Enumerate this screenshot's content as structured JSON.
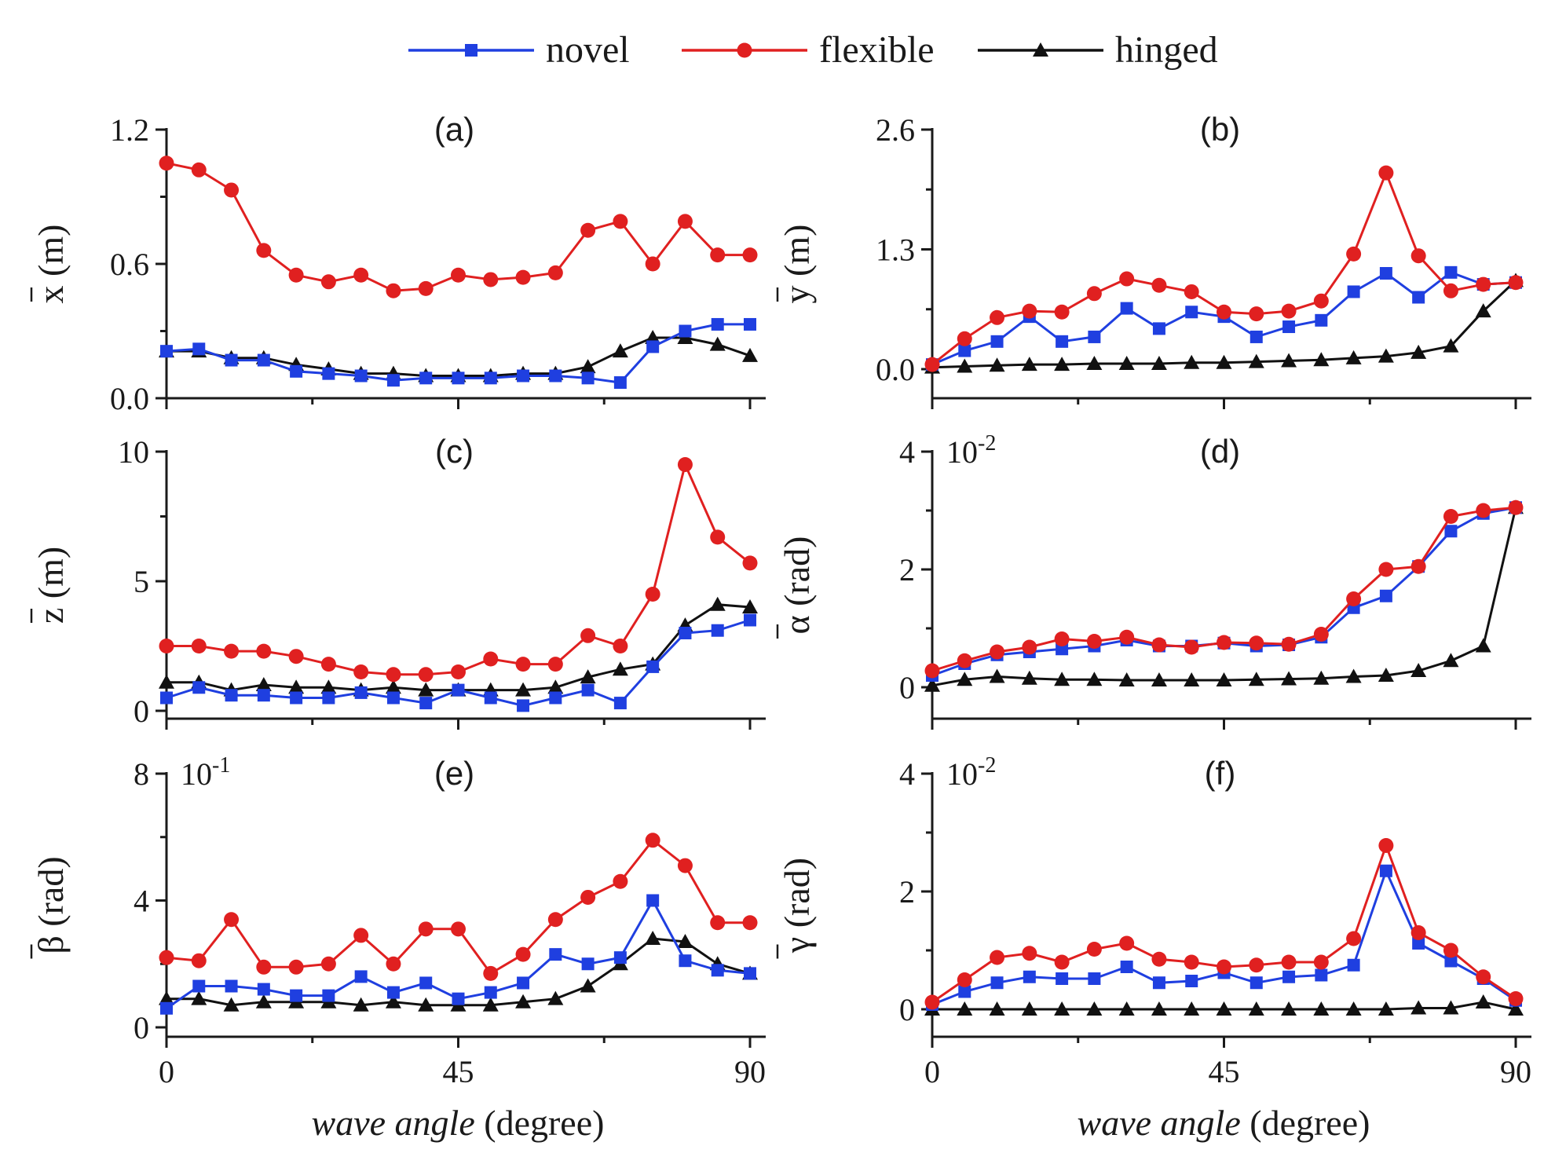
{
  "legend": [
    {
      "name": "novel",
      "color": "#1f3fe0",
      "marker": "square"
    },
    {
      "name": "flexible",
      "color": "#e02020",
      "marker": "circle"
    },
    {
      "name": "hinged",
      "color": "#111111",
      "marker": "triangle"
    }
  ],
  "x_axis_label": {
    "italic": "wave angle",
    "rest": " (degree)"
  },
  "chart_data": [
    {
      "type": "line",
      "panel": "(a)",
      "ylabel": "x (m)",
      "overbar": "x",
      "ylim": [
        0,
        1.2
      ],
      "yticks": [
        "0.0",
        "0.6",
        "1.2"
      ],
      "scale_note": "",
      "xlim": [
        0,
        90
      ],
      "xticks": [
        "0",
        "45",
        "90"
      ],
      "x": [
        0,
        5,
        10,
        15,
        20,
        25,
        30,
        35,
        40,
        45,
        50,
        55,
        60,
        65,
        70,
        75,
        80,
        85,
        90
      ],
      "series": [
        {
          "name": "novel",
          "values": [
            0.21,
            0.22,
            0.17,
            0.17,
            0.12,
            0.11,
            0.1,
            0.08,
            0.09,
            0.09,
            0.09,
            0.1,
            0.1,
            0.09,
            0.07,
            0.23,
            0.3,
            0.33,
            0.33
          ]
        },
        {
          "name": "flexible",
          "values": [
            1.05,
            1.02,
            0.93,
            0.66,
            0.55,
            0.52,
            0.55,
            0.48,
            0.49,
            0.55,
            0.53,
            0.54,
            0.56,
            0.75,
            0.79,
            0.6,
            0.79,
            0.64,
            0.64
          ]
        },
        {
          "name": "hinged",
          "values": [
            0.21,
            0.21,
            0.18,
            0.18,
            0.15,
            0.13,
            0.11,
            0.11,
            0.1,
            0.1,
            0.1,
            0.11,
            0.11,
            0.14,
            0.21,
            0.27,
            0.27,
            0.24,
            0.19
          ]
        }
      ]
    },
    {
      "type": "line",
      "panel": "(b)",
      "ylabel": "y (m)",
      "overbar": "y",
      "ylim": [
        0,
        2.6
      ],
      "yticks": [
        "0.0",
        "1.3",
        "2.6"
      ],
      "scale_note": "",
      "xlim": [
        0,
        90
      ],
      "xticks": [
        "0",
        "45",
        "90"
      ],
      "x": [
        0,
        5,
        10,
        15,
        20,
        25,
        30,
        35,
        40,
        45,
        50,
        55,
        60,
        65,
        70,
        75,
        80,
        85,
        90
      ],
      "series": [
        {
          "name": "novel",
          "values": [
            0.05,
            0.2,
            0.3,
            0.57,
            0.3,
            0.35,
            0.66,
            0.44,
            0.62,
            0.57,
            0.35,
            0.46,
            0.53,
            0.84,
            1.04,
            0.78,
            1.05,
            0.92,
            0.94
          ]
        },
        {
          "name": "flexible",
          "values": [
            0.05,
            0.33,
            0.56,
            0.63,
            0.62,
            0.82,
            0.98,
            0.91,
            0.84,
            0.62,
            0.6,
            0.63,
            0.74,
            1.25,
            2.13,
            1.23,
            0.85,
            0.92,
            0.94
          ]
        },
        {
          "name": "hinged",
          "values": [
            0.02,
            0.03,
            0.04,
            0.05,
            0.05,
            0.06,
            0.06,
            0.06,
            0.07,
            0.07,
            0.08,
            0.09,
            0.1,
            0.12,
            0.14,
            0.18,
            0.25,
            0.63,
            0.96
          ]
        }
      ]
    },
    {
      "type": "line",
      "panel": "(c)",
      "ylabel": "z (m)",
      "overbar": "z",
      "ylim": [
        0,
        10
      ],
      "yticks": [
        "0",
        "5",
        "10"
      ],
      "scale_note": "",
      "xlim": [
        0,
        90
      ],
      "xticks": [
        "0",
        "45",
        "90"
      ],
      "x": [
        0,
        5,
        10,
        15,
        20,
        25,
        30,
        35,
        40,
        45,
        50,
        55,
        60,
        65,
        70,
        75,
        80,
        85,
        90
      ],
      "series": [
        {
          "name": "novel",
          "values": [
            0.5,
            0.9,
            0.6,
            0.6,
            0.5,
            0.5,
            0.7,
            0.5,
            0.3,
            0.8,
            0.5,
            0.2,
            0.5,
            0.8,
            0.3,
            1.7,
            3.0,
            3.1,
            3.5
          ]
        },
        {
          "name": "flexible",
          "values": [
            2.5,
            2.5,
            2.3,
            2.3,
            2.1,
            1.8,
            1.5,
            1.4,
            1.4,
            1.5,
            2.0,
            1.8,
            1.8,
            2.9,
            2.5,
            4.5,
            9.5,
            6.7,
            5.7
          ]
        },
        {
          "name": "hinged",
          "values": [
            1.1,
            1.1,
            0.8,
            1.0,
            0.9,
            0.9,
            0.8,
            0.9,
            0.8,
            0.8,
            0.8,
            0.8,
            0.9,
            1.3,
            1.6,
            1.8,
            3.3,
            4.1,
            4.0
          ]
        }
      ]
    },
    {
      "type": "line",
      "panel": "(d)",
      "ylabel": "α (rad)",
      "overbar": "α",
      "ylim": [
        0,
        4
      ],
      "yticks": [
        "0",
        "2",
        "4"
      ],
      "scale_note": "10-2",
      "xlim": [
        0,
        90
      ],
      "xticks": [
        "0",
        "45",
        "90"
      ],
      "x": [
        0,
        5,
        10,
        15,
        20,
        25,
        30,
        35,
        40,
        45,
        50,
        55,
        60,
        65,
        70,
        75,
        80,
        85,
        90
      ],
      "series": [
        {
          "name": "novel",
          "values": [
            0.2,
            0.4,
            0.55,
            0.6,
            0.65,
            0.7,
            0.8,
            0.7,
            0.7,
            0.75,
            0.7,
            0.72,
            0.85,
            1.35,
            1.55,
            2.05,
            2.65,
            2.95,
            3.05
          ]
        },
        {
          "name": "flexible",
          "values": [
            0.28,
            0.45,
            0.6,
            0.68,
            0.82,
            0.78,
            0.85,
            0.72,
            0.68,
            0.76,
            0.75,
            0.73,
            0.9,
            1.5,
            2.0,
            2.05,
            2.9,
            3.0,
            3.05
          ]
        },
        {
          "name": "hinged",
          "values": [
            0.03,
            0.13,
            0.18,
            0.15,
            0.13,
            0.13,
            0.12,
            0.12,
            0.12,
            0.12,
            0.13,
            0.14,
            0.15,
            0.18,
            0.2,
            0.28,
            0.45,
            0.7,
            3.05
          ]
        }
      ]
    },
    {
      "type": "line",
      "panel": "(e)",
      "ylabel": "β (rad)",
      "overbar": "β",
      "ylim": [
        0,
        8
      ],
      "yticks": [
        "0",
        "4",
        "8"
      ],
      "scale_note": "10-1",
      "xlim": [
        0,
        90
      ],
      "xticks": [
        "0",
        "45",
        "90"
      ],
      "x": [
        0,
        5,
        10,
        15,
        20,
        25,
        30,
        35,
        40,
        45,
        50,
        55,
        60,
        65,
        70,
        75,
        80,
        85,
        90
      ],
      "series": [
        {
          "name": "novel",
          "values": [
            0.6,
            1.3,
            1.3,
            1.2,
            1.0,
            1.0,
            1.6,
            1.1,
            1.4,
            0.9,
            1.1,
            1.4,
            2.3,
            2.0,
            2.2,
            4.0,
            2.1,
            1.8,
            1.7
          ]
        },
        {
          "name": "flexible",
          "values": [
            2.2,
            2.1,
            3.4,
            1.9,
            1.9,
            2.0,
            2.9,
            2.0,
            3.1,
            3.1,
            1.7,
            2.3,
            3.4,
            4.1,
            4.6,
            5.9,
            5.1,
            3.3,
            3.3
          ]
        },
        {
          "name": "hinged",
          "values": [
            0.9,
            0.9,
            0.7,
            0.8,
            0.8,
            0.8,
            0.7,
            0.8,
            0.7,
            0.7,
            0.7,
            0.8,
            0.9,
            1.3,
            2.0,
            2.8,
            2.7,
            2.0,
            1.7
          ]
        }
      ]
    },
    {
      "type": "line",
      "panel": "(f)",
      "ylabel": "γ (rad)",
      "overbar": "γ",
      "ylim": [
        0,
        4
      ],
      "yticks": [
        "0",
        "2",
        "4"
      ],
      "scale_note": "10-2",
      "xlim": [
        0,
        90
      ],
      "xticks": [
        "0",
        "45",
        "90"
      ],
      "x": [
        0,
        5,
        10,
        15,
        20,
        25,
        30,
        35,
        40,
        45,
        50,
        55,
        60,
        65,
        70,
        75,
        80,
        85,
        90
      ],
      "series": [
        {
          "name": "novel",
          "values": [
            0.08,
            0.3,
            0.45,
            0.55,
            0.52,
            0.52,
            0.72,
            0.45,
            0.48,
            0.62,
            0.45,
            0.55,
            0.58,
            0.75,
            2.35,
            1.12,
            0.82,
            0.52,
            0.15
          ]
        },
        {
          "name": "flexible",
          "values": [
            0.12,
            0.5,
            0.88,
            0.95,
            0.8,
            1.02,
            1.12,
            0.85,
            0.8,
            0.72,
            0.75,
            0.8,
            0.8,
            1.2,
            2.78,
            1.3,
            1.0,
            0.55,
            0.18
          ]
        },
        {
          "name": "hinged",
          "values": [
            0.0,
            0.0,
            0.0,
            0.0,
            0.0,
            0.0,
            0.0,
            0.0,
            0.0,
            0.0,
            0.0,
            0.0,
            0.0,
            0.0,
            0.0,
            0.02,
            0.02,
            0.12,
            0.0
          ]
        }
      ]
    }
  ]
}
